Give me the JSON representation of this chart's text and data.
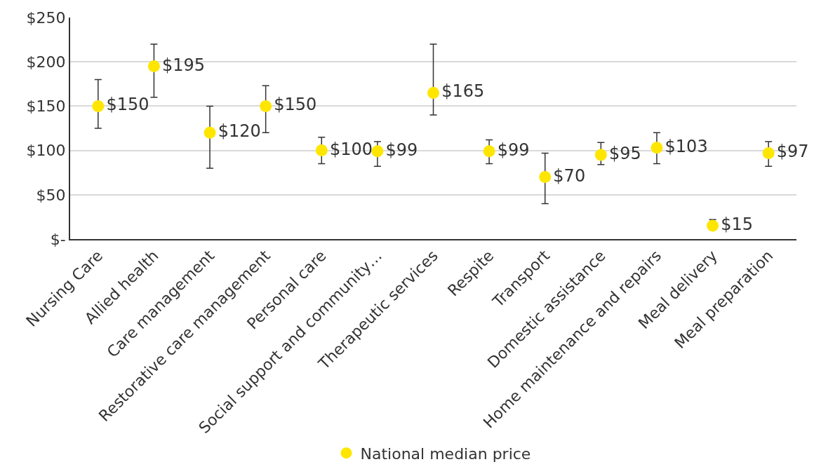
{
  "chart_data": {
    "type": "scatter",
    "categories": [
      "Nursing Care",
      "Allied health",
      "Care management",
      "Restorative care management",
      "Personal care",
      "Social support and community…",
      "Therapeutic services",
      "Respite",
      "Transport",
      "Domestic assistance",
      "Home maintenance and repairs",
      "Meal delivery",
      "Meal preparation"
    ],
    "series": [
      {
        "name": "National median price",
        "color": "#ffe600",
        "values": [
          150,
          195,
          120,
          150,
          100,
          99,
          165,
          99,
          70,
          95,
          103,
          15,
          97
        ],
        "errors": [
          [
            125,
            180
          ],
          [
            160,
            220
          ],
          [
            80,
            150
          ],
          [
            120,
            173
          ],
          [
            85,
            115
          ],
          [
            82,
            110
          ],
          [
            140,
            220
          ],
          [
            85,
            112
          ],
          [
            40,
            97
          ],
          [
            84,
            109
          ],
          [
            85,
            120
          ],
          [
            15,
            22
          ],
          [
            82,
            110
          ]
        ],
        "value_labels": [
          "$150",
          "$195",
          "$120",
          "$150",
          "$100",
          "$99",
          "$165",
          "$99",
          "$70",
          "$95",
          "$103",
          "$15",
          "$97"
        ]
      }
    ],
    "ylim": [
      0,
      250
    ],
    "yticks": [
      {
        "value": 0,
        "label": "$-"
      },
      {
        "value": 50,
        "label": "$50"
      },
      {
        "value": 100,
        "label": "$100"
      },
      {
        "value": 150,
        "label": "$150"
      },
      {
        "value": 200,
        "label": "$200"
      },
      {
        "value": 250,
        "label": "$250"
      }
    ],
    "grid": "y",
    "legend": "bottom",
    "marker": "circle"
  }
}
